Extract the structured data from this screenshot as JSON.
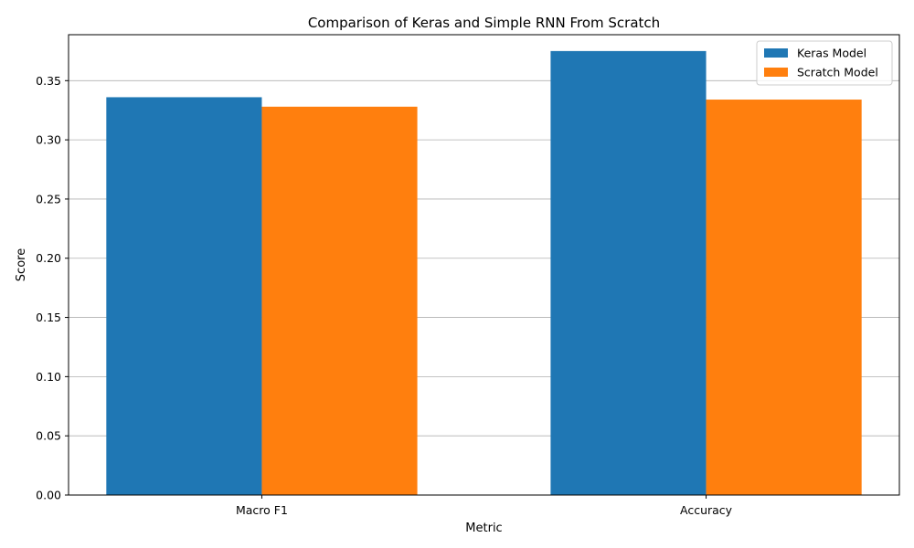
{
  "chart_data": {
    "type": "bar",
    "title": "Comparison of Keras and Simple RNN From Scratch",
    "xlabel": "Metric",
    "ylabel": "Score",
    "categories": [
      "Macro F1",
      "Accuracy"
    ],
    "series": [
      {
        "name": "Keras Model",
        "values": [
          0.336,
          0.375
        ],
        "color": "#1f77b4"
      },
      {
        "name": "Scratch Model",
        "values": [
          0.328,
          0.334
        ],
        "color": "#ff7f0e"
      }
    ],
    "ylim": [
      0,
      0.3888
    ],
    "yticks": [
      "0.00",
      "0.05",
      "0.10",
      "0.15",
      "0.20",
      "0.25",
      "0.30",
      "0.35"
    ],
    "grid": "y-axis",
    "legend": "top-right"
  }
}
